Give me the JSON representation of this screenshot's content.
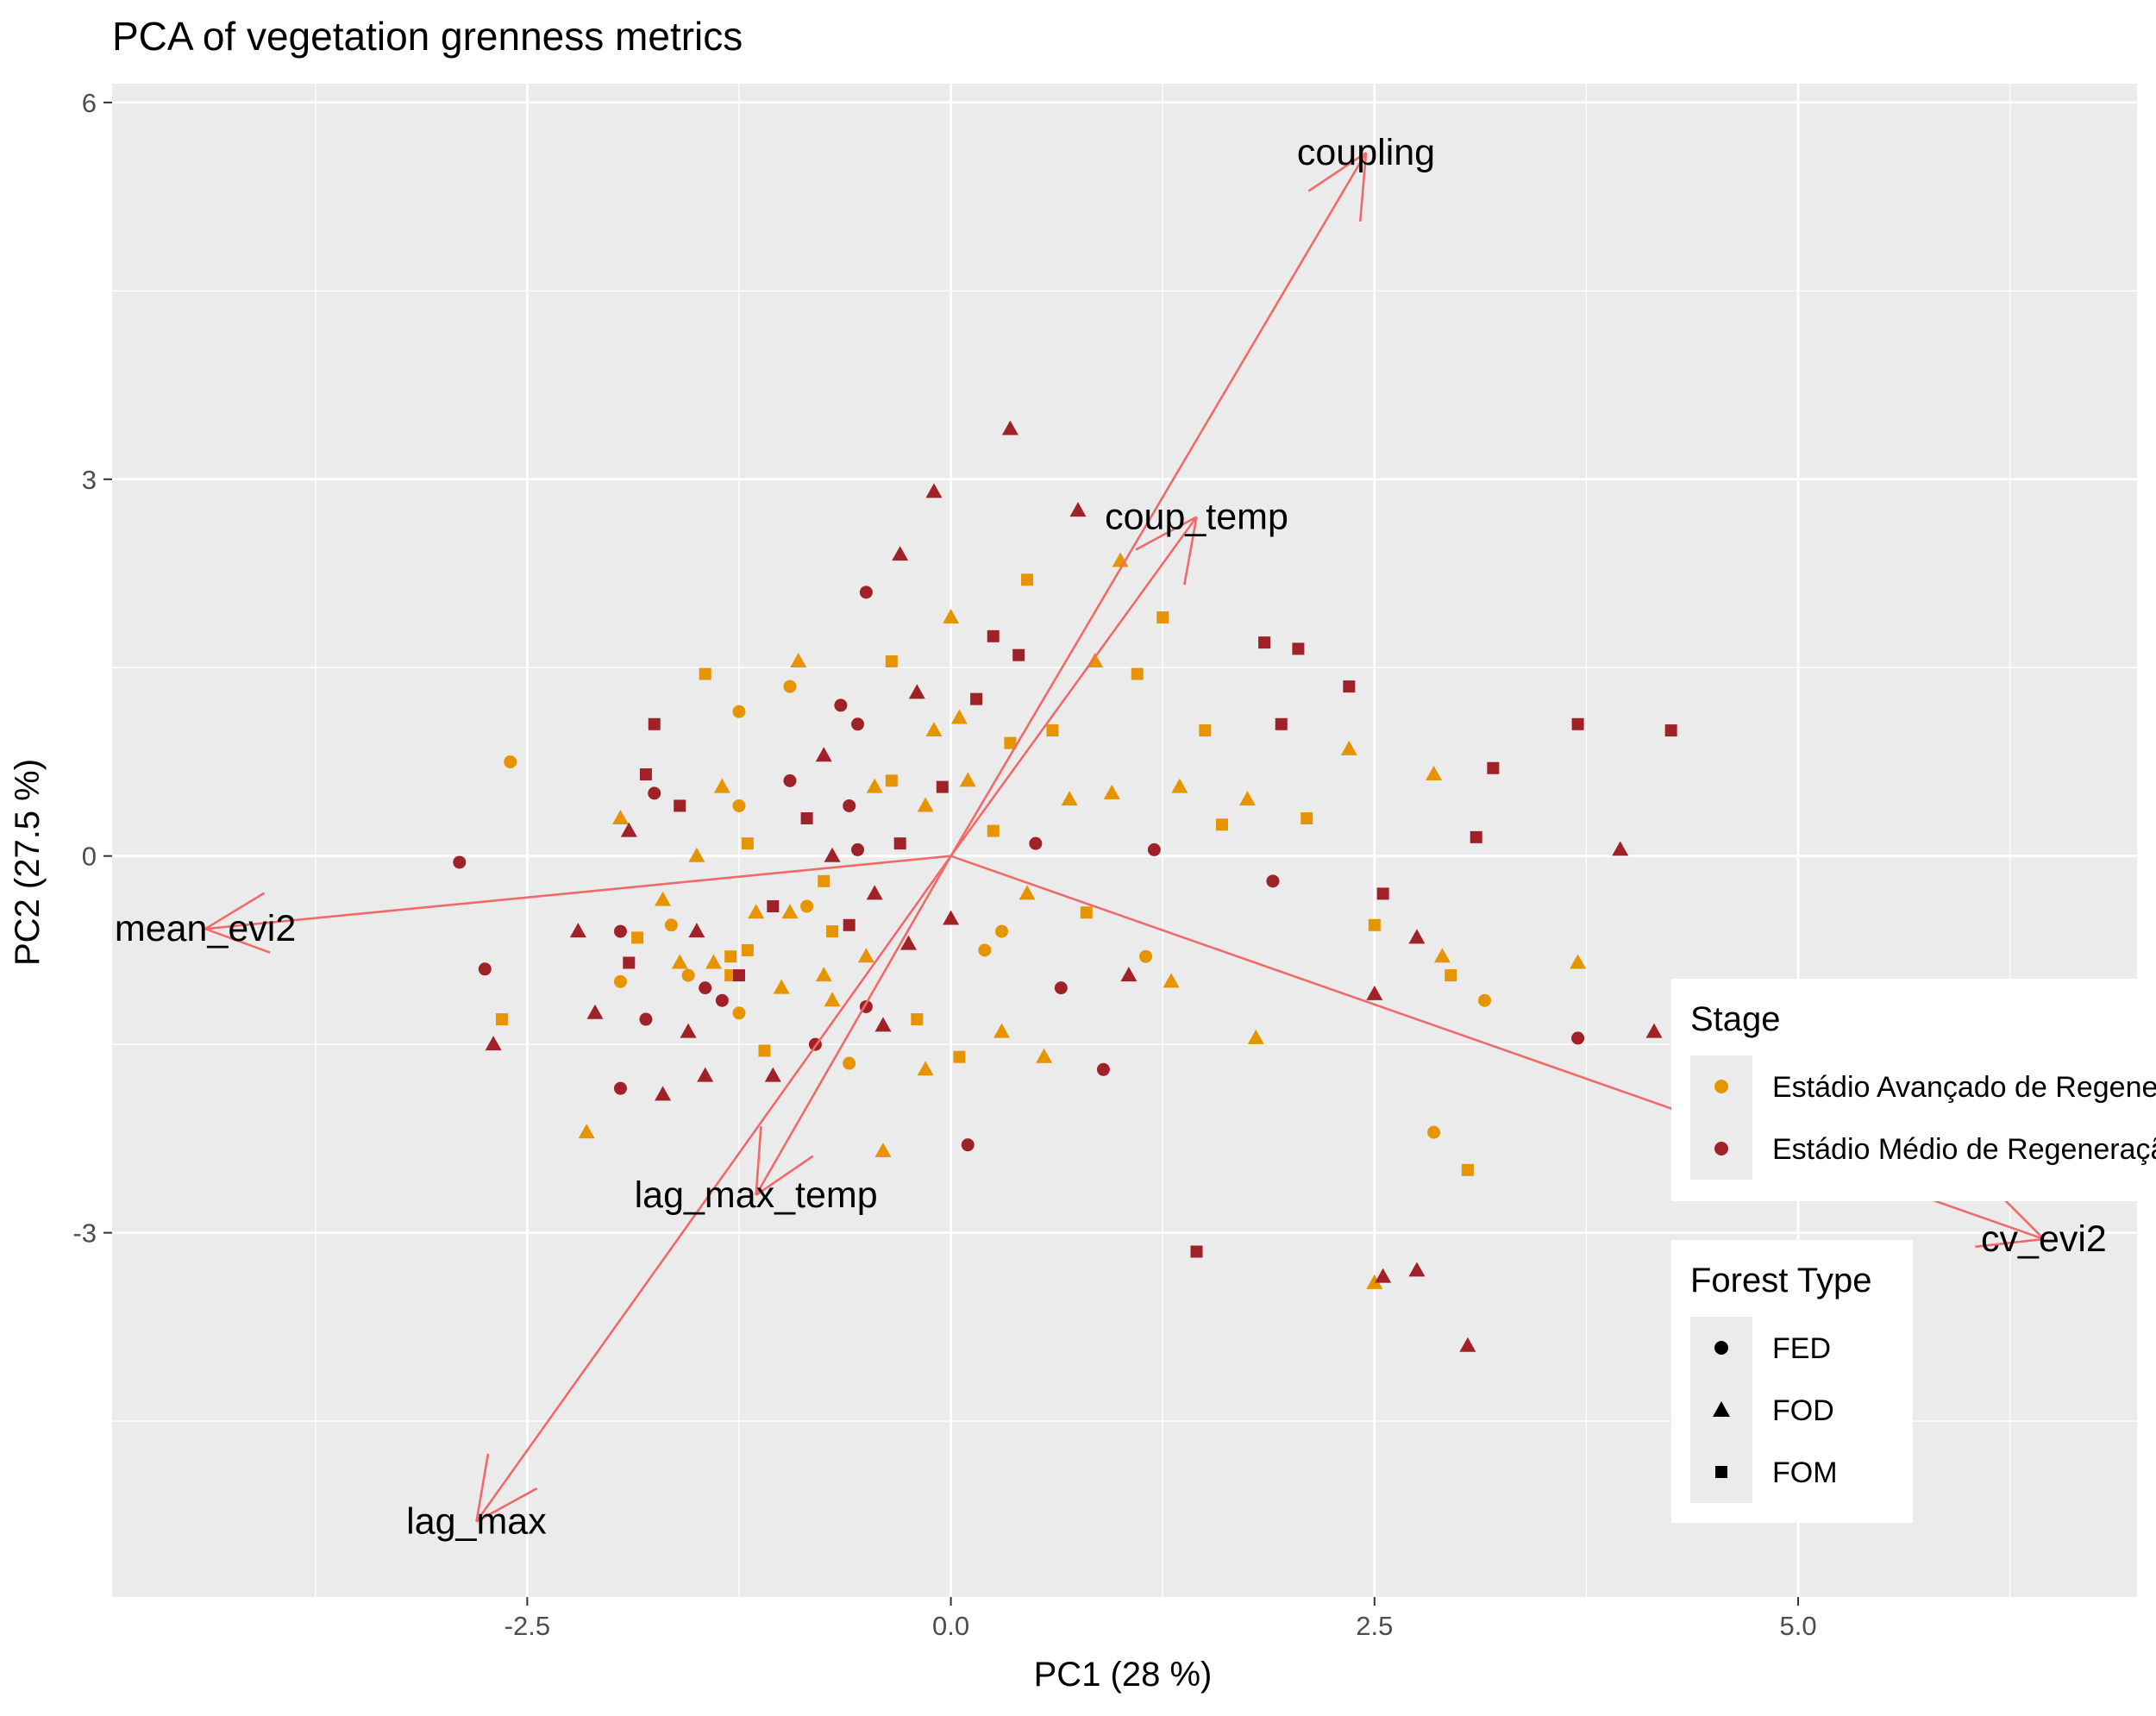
{
  "chart_data": {
    "type": "scatter",
    "title": "PCA of vegetation grenness metrics",
    "xlabel": "PC1 (28 %)",
    "ylabel": "PC2 (27.5 %)",
    "xlim": [
      -4.95,
      7.0
    ],
    "ylim": [
      -5.9,
      6.15
    ],
    "x_ticks": [
      {
        "value": -2.5,
        "label": "-2.5"
      },
      {
        "value": 0,
        "label": "0.0"
      },
      {
        "value": 2.5,
        "label": "2.5"
      },
      {
        "value": 5,
        "label": "5.0"
      }
    ],
    "y_ticks": [
      {
        "value": -3,
        "label": "-3"
      },
      {
        "value": 0,
        "label": "0"
      },
      {
        "value": 3,
        "label": "3"
      },
      {
        "value": 6,
        "label": "6"
      }
    ],
    "grid": true,
    "colors": {
      "panel": "#ebebeb",
      "grid": "#ffffff",
      "arrow": "#f06a6a",
      "stage_avancado": "#e69500",
      "stage_medio": "#a02228"
    },
    "loadings": [
      {
        "name": "coupling",
        "x": 2.45,
        "y": 5.6
      },
      {
        "name": "coup_temp",
        "x": 1.45,
        "y": 2.7
      },
      {
        "name": "mean_evi2",
        "x": -4.4,
        "y": -0.58
      },
      {
        "name": "lag_max_temp",
        "x": -1.15,
        "y": -2.7
      },
      {
        "name": "lag_max",
        "x": -2.8,
        "y": -5.3
      },
      {
        "name": "cv_evi2",
        "x": 6.45,
        "y": -3.05
      }
    ],
    "legends": {
      "stage": {
        "title": "Stage",
        "entries": [
          {
            "label": "Estádio Avançado de Regeneração",
            "color": "#e69500"
          },
          {
            "label": "Estádio Médio de Regeneração",
            "color": "#a02228"
          }
        ]
      },
      "forest_type": {
        "title": "Forest Type",
        "entries": [
          {
            "label": "FED",
            "shape": "circle"
          },
          {
            "label": "FOD",
            "shape": "triangle"
          },
          {
            "label": "FOM",
            "shape": "square"
          }
        ]
      },
      "placement": "right"
    },
    "points": [
      {
        "x": -2.6,
        "y": 0.75,
        "stage": "A",
        "type": "FED"
      },
      {
        "x": -2.9,
        "y": -0.05,
        "stage": "M",
        "type": "FED"
      },
      {
        "x": -2.75,
        "y": -0.9,
        "stage": "M",
        "type": "FED"
      },
      {
        "x": -2.65,
        "y": -1.3,
        "stage": "A",
        "type": "FOM"
      },
      {
        "x": -2.7,
        "y": -1.5,
        "stage": "M",
        "type": "FOD"
      },
      {
        "x": -2.2,
        "y": -0.6,
        "stage": "M",
        "type": "FOD"
      },
      {
        "x": -2.1,
        "y": -1.25,
        "stage": "M",
        "type": "FOD"
      },
      {
        "x": -2.15,
        "y": -2.2,
        "stage": "A",
        "type": "FOD"
      },
      {
        "x": -1.95,
        "y": -1.85,
        "stage": "M",
        "type": "FED"
      },
      {
        "x": -1.95,
        "y": 0.3,
        "stage": "A",
        "type": "FOD"
      },
      {
        "x": -1.9,
        "y": 0.2,
        "stage": "M",
        "type": "FOD"
      },
      {
        "x": -1.95,
        "y": -0.6,
        "stage": "M",
        "type": "FED"
      },
      {
        "x": -1.9,
        "y": -0.85,
        "stage": "M",
        "type": "FOM"
      },
      {
        "x": -1.95,
        "y": -1.0,
        "stage": "A",
        "type": "FED"
      },
      {
        "x": -1.85,
        "y": -0.65,
        "stage": "A",
        "type": "FOM"
      },
      {
        "x": -1.8,
        "y": -1.3,
        "stage": "M",
        "type": "FED"
      },
      {
        "x": -1.8,
        "y": 0.65,
        "stage": "M",
        "type": "FOM"
      },
      {
        "x": -1.75,
        "y": 0.5,
        "stage": "M",
        "type": "FED"
      },
      {
        "x": -1.75,
        "y": 1.05,
        "stage": "M",
        "type": "FOM"
      },
      {
        "x": -1.7,
        "y": -0.35,
        "stage": "A",
        "type": "FOD"
      },
      {
        "x": -1.7,
        "y": -1.9,
        "stage": "M",
        "type": "FOD"
      },
      {
        "x": -1.65,
        "y": -0.55,
        "stage": "A",
        "type": "FED"
      },
      {
        "x": -1.6,
        "y": -0.85,
        "stage": "A",
        "type": "FOD"
      },
      {
        "x": -1.55,
        "y": -1.4,
        "stage": "M",
        "type": "FOD"
      },
      {
        "x": -1.6,
        "y": 0.4,
        "stage": "M",
        "type": "FOM"
      },
      {
        "x": -1.55,
        "y": -0.95,
        "stage": "A",
        "type": "FED"
      },
      {
        "x": -1.5,
        "y": 0.0,
        "stage": "A",
        "type": "FOD"
      },
      {
        "x": -1.5,
        "y": -0.6,
        "stage": "M",
        "type": "FOD"
      },
      {
        "x": -1.45,
        "y": -1.05,
        "stage": "M",
        "type": "FED"
      },
      {
        "x": -1.45,
        "y": -1.75,
        "stage": "M",
        "type": "FOD"
      },
      {
        "x": -1.45,
        "y": 1.45,
        "stage": "A",
        "type": "FOM"
      },
      {
        "x": -1.4,
        "y": -0.85,
        "stage": "A",
        "type": "FOD"
      },
      {
        "x": -1.35,
        "y": -1.15,
        "stage": "M",
        "type": "FED"
      },
      {
        "x": -1.35,
        "y": 0.55,
        "stage": "A",
        "type": "FOD"
      },
      {
        "x": -1.3,
        "y": -0.8,
        "stage": "A",
        "type": "FOM"
      },
      {
        "x": -1.3,
        "y": -0.95,
        "stage": "A",
        "type": "FOM"
      },
      {
        "x": -1.25,
        "y": 1.15,
        "stage": "A",
        "type": "FED"
      },
      {
        "x": -1.25,
        "y": 0.4,
        "stage": "A",
        "type": "FED"
      },
      {
        "x": -1.25,
        "y": -1.25,
        "stage": "A",
        "type": "FED"
      },
      {
        "x": -1.2,
        "y": 0.1,
        "stage": "A",
        "type": "FOM"
      },
      {
        "x": -1.2,
        "y": -0.75,
        "stage": "A",
        "type": "FOM"
      },
      {
        "x": -1.25,
        "y": -0.95,
        "stage": "M",
        "type": "FOM"
      },
      {
        "x": -1.15,
        "y": -0.45,
        "stage": "A",
        "type": "FOD"
      },
      {
        "x": -1.1,
        "y": -1.55,
        "stage": "A",
        "type": "FOM"
      },
      {
        "x": -1.05,
        "y": -0.4,
        "stage": "M",
        "type": "FOM"
      },
      {
        "x": -1.05,
        "y": -1.75,
        "stage": "M",
        "type": "FOD"
      },
      {
        "x": -1.0,
        "y": -1.05,
        "stage": "A",
        "type": "FOD"
      },
      {
        "x": -0.95,
        "y": 1.35,
        "stage": "A",
        "type": "FED"
      },
      {
        "x": -0.95,
        "y": -0.45,
        "stage": "A",
        "type": "FOD"
      },
      {
        "x": -0.95,
        "y": 0.6,
        "stage": "M",
        "type": "FED"
      },
      {
        "x": -0.9,
        "y": 1.55,
        "stage": "A",
        "type": "FOD"
      },
      {
        "x": -0.85,
        "y": 0.3,
        "stage": "M",
        "type": "FOM"
      },
      {
        "x": -0.85,
        "y": -0.4,
        "stage": "A",
        "type": "FED"
      },
      {
        "x": -0.8,
        "y": -1.5,
        "stage": "M",
        "type": "FED"
      },
      {
        "x": -0.75,
        "y": 0.8,
        "stage": "M",
        "type": "FOD"
      },
      {
        "x": -0.75,
        "y": -0.2,
        "stage": "A",
        "type": "FOM"
      },
      {
        "x": -0.75,
        "y": -0.95,
        "stage": "A",
        "type": "FOD"
      },
      {
        "x": -0.7,
        "y": -1.15,
        "stage": "A",
        "type": "FOD"
      },
      {
        "x": -0.7,
        "y": 0.0,
        "stage": "M",
        "type": "FOD"
      },
      {
        "x": -0.7,
        "y": -0.6,
        "stage": "A",
        "type": "FOM"
      },
      {
        "x": -0.65,
        "y": 1.2,
        "stage": "M",
        "type": "FED"
      },
      {
        "x": -0.6,
        "y": 0.4,
        "stage": "M",
        "type": "FED"
      },
      {
        "x": -0.6,
        "y": -0.55,
        "stage": "M",
        "type": "FOM"
      },
      {
        "x": -0.6,
        "y": -1.65,
        "stage": "A",
        "type": "FED"
      },
      {
        "x": -0.55,
        "y": 0.05,
        "stage": "M",
        "type": "FED"
      },
      {
        "x": -0.55,
        "y": 1.05,
        "stage": "M",
        "type": "FED"
      },
      {
        "x": -0.5,
        "y": -0.8,
        "stage": "A",
        "type": "FOD"
      },
      {
        "x": -0.5,
        "y": -1.2,
        "stage": "M",
        "type": "FED"
      },
      {
        "x": -0.5,
        "y": 2.1,
        "stage": "M",
        "type": "FED"
      },
      {
        "x": -0.45,
        "y": -0.3,
        "stage": "M",
        "type": "FOD"
      },
      {
        "x": -0.45,
        "y": 0.55,
        "stage": "A",
        "type": "FOD"
      },
      {
        "x": -0.4,
        "y": -1.35,
        "stage": "M",
        "type": "FOD"
      },
      {
        "x": -0.4,
        "y": -2.35,
        "stage": "A",
        "type": "FOD"
      },
      {
        "x": -0.35,
        "y": 1.55,
        "stage": "A",
        "type": "FOM"
      },
      {
        "x": -0.35,
        "y": 0.6,
        "stage": "A",
        "type": "FOM"
      },
      {
        "x": -0.3,
        "y": 2.4,
        "stage": "M",
        "type": "FOD"
      },
      {
        "x": -0.3,
        "y": 0.1,
        "stage": "M",
        "type": "FOM"
      },
      {
        "x": -0.25,
        "y": -0.7,
        "stage": "M",
        "type": "FOD"
      },
      {
        "x": -0.2,
        "y": 1.3,
        "stage": "M",
        "type": "FOD"
      },
      {
        "x": -0.2,
        "y": -1.3,
        "stage": "A",
        "type": "FOM"
      },
      {
        "x": -0.15,
        "y": 0.4,
        "stage": "A",
        "type": "FOD"
      },
      {
        "x": -0.15,
        "y": -1.7,
        "stage": "A",
        "type": "FOD"
      },
      {
        "x": -0.1,
        "y": 2.9,
        "stage": "M",
        "type": "FOD"
      },
      {
        "x": -0.1,
        "y": 1.0,
        "stage": "A",
        "type": "FOD"
      },
      {
        "x": -0.05,
        "y": 0.55,
        "stage": "M",
        "type": "FOM"
      },
      {
        "x": 0.0,
        "y": 1.9,
        "stage": "A",
        "type": "FOD"
      },
      {
        "x": 0.0,
        "y": -0.5,
        "stage": "M",
        "type": "FOD"
      },
      {
        "x": 0.05,
        "y": 1.1,
        "stage": "A",
        "type": "FOD"
      },
      {
        "x": 0.05,
        "y": -1.6,
        "stage": "A",
        "type": "FOM"
      },
      {
        "x": 0.1,
        "y": 0.6,
        "stage": "A",
        "type": "FOD"
      },
      {
        "x": 0.1,
        "y": -2.3,
        "stage": "M",
        "type": "FED"
      },
      {
        "x": 0.15,
        "y": 1.25,
        "stage": "M",
        "type": "FOM"
      },
      {
        "x": 0.2,
        "y": -0.75,
        "stage": "A",
        "type": "FED"
      },
      {
        "x": 0.25,
        "y": 0.2,
        "stage": "A",
        "type": "FOM"
      },
      {
        "x": 0.25,
        "y": 1.75,
        "stage": "M",
        "type": "FOM"
      },
      {
        "x": 0.3,
        "y": -0.6,
        "stage": "A",
        "type": "FED"
      },
      {
        "x": 0.3,
        "y": -1.4,
        "stage": "A",
        "type": "FOD"
      },
      {
        "x": 0.35,
        "y": 3.4,
        "stage": "M",
        "type": "FOD"
      },
      {
        "x": 0.35,
        "y": 0.9,
        "stage": "A",
        "type": "FOM"
      },
      {
        "x": 0.4,
        "y": 1.6,
        "stage": "M",
        "type": "FOM"
      },
      {
        "x": 0.45,
        "y": -0.3,
        "stage": "A",
        "type": "FOD"
      },
      {
        "x": 0.45,
        "y": 2.2,
        "stage": "A",
        "type": "FOM"
      },
      {
        "x": 0.5,
        "y": 0.1,
        "stage": "M",
        "type": "FED"
      },
      {
        "x": 0.55,
        "y": -1.6,
        "stage": "A",
        "type": "FOD"
      },
      {
        "x": 0.6,
        "y": 1.0,
        "stage": "A",
        "type": "FOM"
      },
      {
        "x": 0.65,
        "y": -1.05,
        "stage": "M",
        "type": "FED"
      },
      {
        "x": 0.7,
        "y": 0.45,
        "stage": "A",
        "type": "FOD"
      },
      {
        "x": 0.75,
        "y": 2.75,
        "stage": "M",
        "type": "FOD"
      },
      {
        "x": 0.8,
        "y": -0.45,
        "stage": "A",
        "type": "FOM"
      },
      {
        "x": 0.85,
        "y": 1.55,
        "stage": "A",
        "type": "FOD"
      },
      {
        "x": 0.9,
        "y": -1.7,
        "stage": "M",
        "type": "FED"
      },
      {
        "x": 0.95,
        "y": 0.5,
        "stage": "A",
        "type": "FOD"
      },
      {
        "x": 1.0,
        "y": 2.35,
        "stage": "A",
        "type": "FOD"
      },
      {
        "x": 1.05,
        "y": -0.95,
        "stage": "M",
        "type": "FOD"
      },
      {
        "x": 1.1,
        "y": 1.45,
        "stage": "A",
        "type": "FOM"
      },
      {
        "x": 1.15,
        "y": -0.8,
        "stage": "A",
        "type": "FED"
      },
      {
        "x": 1.2,
        "y": 0.05,
        "stage": "M",
        "type": "FED"
      },
      {
        "x": 1.25,
        "y": 1.9,
        "stage": "A",
        "type": "FOM"
      },
      {
        "x": 1.3,
        "y": -1.0,
        "stage": "A",
        "type": "FOD"
      },
      {
        "x": 1.35,
        "y": 0.55,
        "stage": "A",
        "type": "FOD"
      },
      {
        "x": 1.45,
        "y": -3.15,
        "stage": "M",
        "type": "FOM"
      },
      {
        "x": 1.5,
        "y": 1.0,
        "stage": "A",
        "type": "FOM"
      },
      {
        "x": 1.6,
        "y": 0.25,
        "stage": "A",
        "type": "FOM"
      },
      {
        "x": 1.75,
        "y": 0.45,
        "stage": "A",
        "type": "FOD"
      },
      {
        "x": 1.8,
        "y": -1.45,
        "stage": "A",
        "type": "FOD"
      },
      {
        "x": 1.85,
        "y": 1.7,
        "stage": "M",
        "type": "FOM"
      },
      {
        "x": 1.9,
        "y": -0.2,
        "stage": "M",
        "type": "FED"
      },
      {
        "x": 1.95,
        "y": 1.05,
        "stage": "M",
        "type": "FOM"
      },
      {
        "x": 2.05,
        "y": 1.65,
        "stage": "M",
        "type": "FOM"
      },
      {
        "x": 2.1,
        "y": 0.3,
        "stage": "A",
        "type": "FOM"
      },
      {
        "x": 2.35,
        "y": 1.35,
        "stage": "M",
        "type": "FOM"
      },
      {
        "x": 2.35,
        "y": 0.85,
        "stage": "A",
        "type": "FOD"
      },
      {
        "x": 2.5,
        "y": -0.55,
        "stage": "A",
        "type": "FOM"
      },
      {
        "x": 2.5,
        "y": -1.1,
        "stage": "M",
        "type": "FOD"
      },
      {
        "x": 2.5,
        "y": -3.4,
        "stage": "A",
        "type": "FOD"
      },
      {
        "x": 2.55,
        "y": -3.35,
        "stage": "M",
        "type": "FOD"
      },
      {
        "x": 2.55,
        "y": -0.3,
        "stage": "M",
        "type": "FOM"
      },
      {
        "x": 2.75,
        "y": -0.65,
        "stage": "M",
        "type": "FOD"
      },
      {
        "x": 2.75,
        "y": -3.3,
        "stage": "M",
        "type": "FOD"
      },
      {
        "x": 2.85,
        "y": 0.65,
        "stage": "A",
        "type": "FOD"
      },
      {
        "x": 2.85,
        "y": -2.2,
        "stage": "A",
        "type": "FED"
      },
      {
        "x": 2.9,
        "y": -0.8,
        "stage": "A",
        "type": "FOD"
      },
      {
        "x": 2.95,
        "y": -0.95,
        "stage": "A",
        "type": "FOM"
      },
      {
        "x": 3.05,
        "y": -2.5,
        "stage": "A",
        "type": "FOM"
      },
      {
        "x": 3.05,
        "y": -3.9,
        "stage": "M",
        "type": "FOD"
      },
      {
        "x": 3.1,
        "y": 0.15,
        "stage": "M",
        "type": "FOM"
      },
      {
        "x": 3.15,
        "y": -1.15,
        "stage": "A",
        "type": "FED"
      },
      {
        "x": 3.2,
        "y": 0.7,
        "stage": "M",
        "type": "FOM"
      },
      {
        "x": 3.7,
        "y": 1.05,
        "stage": "M",
        "type": "FOM"
      },
      {
        "x": 3.7,
        "y": -0.85,
        "stage": "A",
        "type": "FOD"
      },
      {
        "x": 3.7,
        "y": -1.45,
        "stage": "M",
        "type": "FED"
      },
      {
        "x": 3.95,
        "y": 0.05,
        "stage": "M",
        "type": "FOD"
      },
      {
        "x": 4.15,
        "y": -1.4,
        "stage": "M",
        "type": "FOD"
      },
      {
        "x": 4.25,
        "y": 1.0,
        "stage": "M",
        "type": "FOM"
      }
    ]
  }
}
